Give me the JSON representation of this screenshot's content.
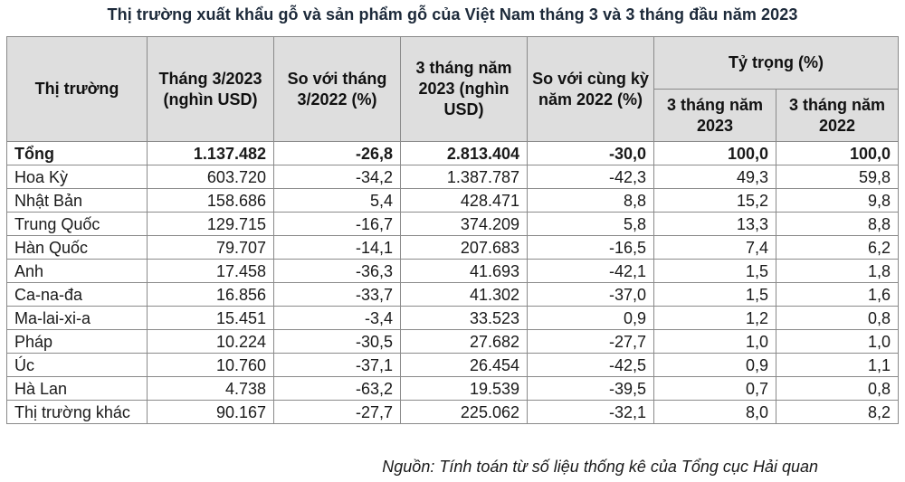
{
  "title": "Thị trường xuất khẩu gỗ và sản phẩm gỗ của Việt Nam tháng 3 và 3 tháng đầu năm 2023",
  "headers": {
    "market": "Thị trường",
    "mar2023": "Tháng 3/2023 (nghìn USD)",
    "vs_mar2022": "So với tháng 3/2022 (%)",
    "q1_2023": "3 tháng năm 2023 (nghìn USD)",
    "vs_same_period": "So với cùng kỳ năm 2022 (%)",
    "share_group": "Tỷ trọng (%)",
    "share_2023": "3 tháng năm 2023",
    "share_2022": "3 tháng năm 2022"
  },
  "total": {
    "name": "Tổng",
    "mar2023": "1.137.482",
    "vs_mar2022": "-26,8",
    "q1_2023": "2.813.404",
    "vs_same_period": "-30,0",
    "share_2023": "100,0",
    "share_2022": "100,0"
  },
  "rows": [
    {
      "name": "Hoa Kỳ",
      "mar2023": "603.720",
      "vs_mar2022": "-34,2",
      "q1_2023": "1.387.787",
      "vs_same_period": "-42,3",
      "share_2023": "49,3",
      "share_2022": "59,8"
    },
    {
      "name": "Nhật Bản",
      "mar2023": "158.686",
      "vs_mar2022": "5,4",
      "q1_2023": "428.471",
      "vs_same_period": "8,8",
      "share_2023": "15,2",
      "share_2022": "9,8"
    },
    {
      "name": "Trung Quốc",
      "mar2023": "129.715",
      "vs_mar2022": "-16,7",
      "q1_2023": "374.209",
      "vs_same_period": "5,8",
      "share_2023": "13,3",
      "share_2022": "8,8"
    },
    {
      "name": "Hàn Quốc",
      "mar2023": "79.707",
      "vs_mar2022": "-14,1",
      "q1_2023": "207.683",
      "vs_same_period": "-16,5",
      "share_2023": "7,4",
      "share_2022": "6,2"
    },
    {
      "name": "Anh",
      "mar2023": "17.458",
      "vs_mar2022": "-36,3",
      "q1_2023": "41.693",
      "vs_same_period": "-42,1",
      "share_2023": "1,5",
      "share_2022": "1,8"
    },
    {
      "name": "Ca-na-đa",
      "mar2023": "16.856",
      "vs_mar2022": "-33,7",
      "q1_2023": "41.302",
      "vs_same_period": "-37,0",
      "share_2023": "1,5",
      "share_2022": "1,6"
    },
    {
      "name": "Ma-lai-xi-a",
      "mar2023": "15.451",
      "vs_mar2022": "-3,4",
      "q1_2023": "33.523",
      "vs_same_period": "0,9",
      "share_2023": "1,2",
      "share_2022": "0,8"
    },
    {
      "name": "Pháp",
      "mar2023": "10.224",
      "vs_mar2022": "-30,5",
      "q1_2023": "27.682",
      "vs_same_period": "-27,7",
      "share_2023": "1,0",
      "share_2022": "1,0"
    },
    {
      "name": "Úc",
      "mar2023": "10.760",
      "vs_mar2022": "-37,1",
      "q1_2023": "26.454",
      "vs_same_period": "-42,5",
      "share_2023": "0,9",
      "share_2022": "1,1"
    },
    {
      "name": "Hà Lan",
      "mar2023": "4.738",
      "vs_mar2022": "-63,2",
      "q1_2023": "19.539",
      "vs_same_period": "-39,5",
      "share_2023": "0,7",
      "share_2022": "0,8"
    },
    {
      "name": "Thị trường khác",
      "mar2023": "90.167",
      "vs_mar2022": "-27,7",
      "q1_2023": "225.062",
      "vs_same_period": "-32,1",
      "share_2023": "8,0",
      "share_2022": "8,2"
    }
  ],
  "source": "Nguồn: Tính toán từ số liệu thống kê của Tổng cục Hải quan"
}
